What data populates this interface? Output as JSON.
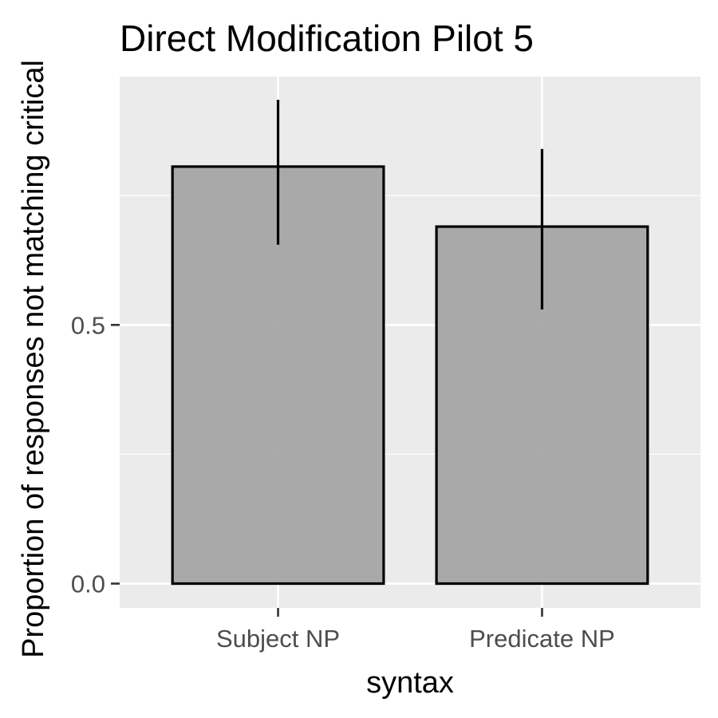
{
  "chart_data": {
    "type": "bar",
    "title": "Direct Modification Pilot 5",
    "xlabel": "syntax",
    "ylabel": "Proportion of responses not matching critical",
    "categories": [
      "Subject NP",
      "Predicate NP"
    ],
    "values": [
      0.806,
      0.69
    ],
    "error_bars": [
      {
        "low": 0.655,
        "high": 0.935
      },
      {
        "low": 0.53,
        "high": 0.84
      }
    ],
    "yticks": [
      0.0,
      0.5
    ],
    "ytick_labels": [
      "0.0",
      "0.5"
    ],
    "ylim": [
      -0.047,
      0.98
    ],
    "grid": true,
    "colors": {
      "panel": "#ebebeb",
      "gridline": "#ffffff",
      "bar_fill": "#a3a3a3",
      "bar_stroke": "#000000",
      "errorbar": "#000000",
      "tick": "#333333"
    }
  }
}
